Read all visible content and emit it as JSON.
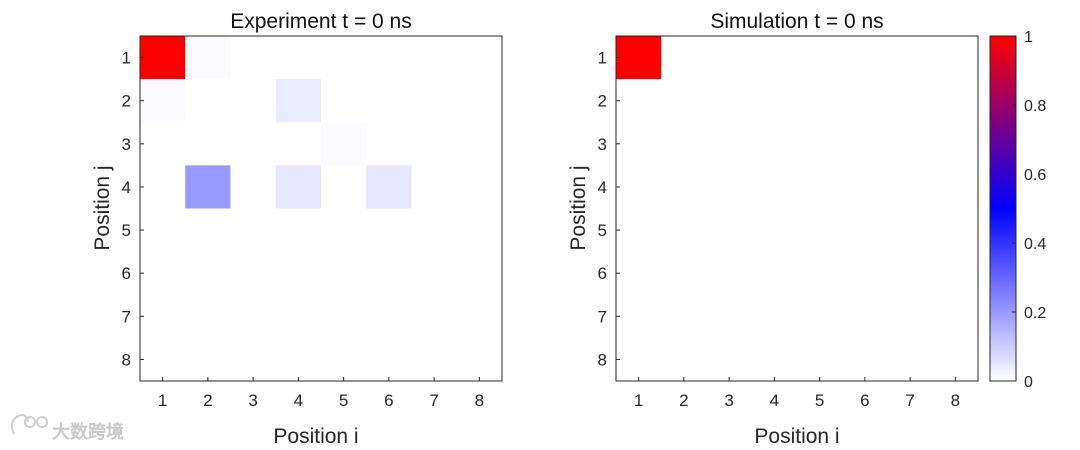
{
  "chart_data": [
    {
      "type": "heatmap",
      "title": "Experiment t = 0 ns",
      "xlabel": "Position i",
      "ylabel": "Position j",
      "x_ticks": [
        "1",
        "2",
        "3",
        "4",
        "5",
        "6",
        "7",
        "8"
      ],
      "y_ticks": [
        "1",
        "2",
        "3",
        "4",
        "5",
        "6",
        "7",
        "8"
      ],
      "matrix": [
        [
          1.0,
          0.01,
          0,
          0,
          0,
          0,
          0,
          0
        ],
        [
          0.01,
          0,
          0,
          0.04,
          0,
          0,
          0,
          0
        ],
        [
          0,
          0,
          0,
          0,
          0.01,
          0,
          0,
          0
        ],
        [
          0,
          0.2,
          0,
          0.05,
          0,
          0.05,
          0,
          0
        ],
        [
          0,
          0,
          0,
          0,
          0,
          0,
          0,
          0
        ],
        [
          0,
          0,
          0,
          0,
          0,
          0,
          0,
          0
        ],
        [
          0,
          0,
          0,
          0,
          0,
          0,
          0,
          0
        ],
        [
          0,
          0,
          0,
          0,
          0,
          0,
          0,
          0
        ]
      ],
      "grid": false
    },
    {
      "type": "heatmap",
      "title": "Simulation t = 0 ns",
      "xlabel": "Position i",
      "ylabel": "Position j",
      "x_ticks": [
        "1",
        "2",
        "3",
        "4",
        "5",
        "6",
        "7",
        "8"
      ],
      "y_ticks": [
        "1",
        "2",
        "3",
        "4",
        "5",
        "6",
        "7",
        "8"
      ],
      "matrix": [
        [
          1,
          0,
          0,
          0,
          0,
          0,
          0,
          0
        ],
        [
          0,
          0,
          0,
          0,
          0,
          0,
          0,
          0
        ],
        [
          0,
          0,
          0,
          0,
          0,
          0,
          0,
          0
        ],
        [
          0,
          0,
          0,
          0,
          0,
          0,
          0,
          0
        ],
        [
          0,
          0,
          0,
          0,
          0,
          0,
          0,
          0
        ],
        [
          0,
          0,
          0,
          0,
          0,
          0,
          0,
          0
        ],
        [
          0,
          0,
          0,
          0,
          0,
          0,
          0,
          0
        ],
        [
          0,
          0,
          0,
          0,
          0,
          0,
          0,
          0
        ]
      ],
      "grid": false
    }
  ],
  "colorbar": {
    "range": [
      0,
      1
    ],
    "ticks": [
      "0",
      "0.2",
      "0.4",
      "0.6",
      "0.8",
      "1"
    ],
    "tick_values": [
      0,
      0.2,
      0.4,
      0.6,
      0.8,
      1
    ],
    "colormap": [
      "#ffffff",
      "#0000ff",
      "#ff0000"
    ]
  },
  "watermark": "大数跨境"
}
